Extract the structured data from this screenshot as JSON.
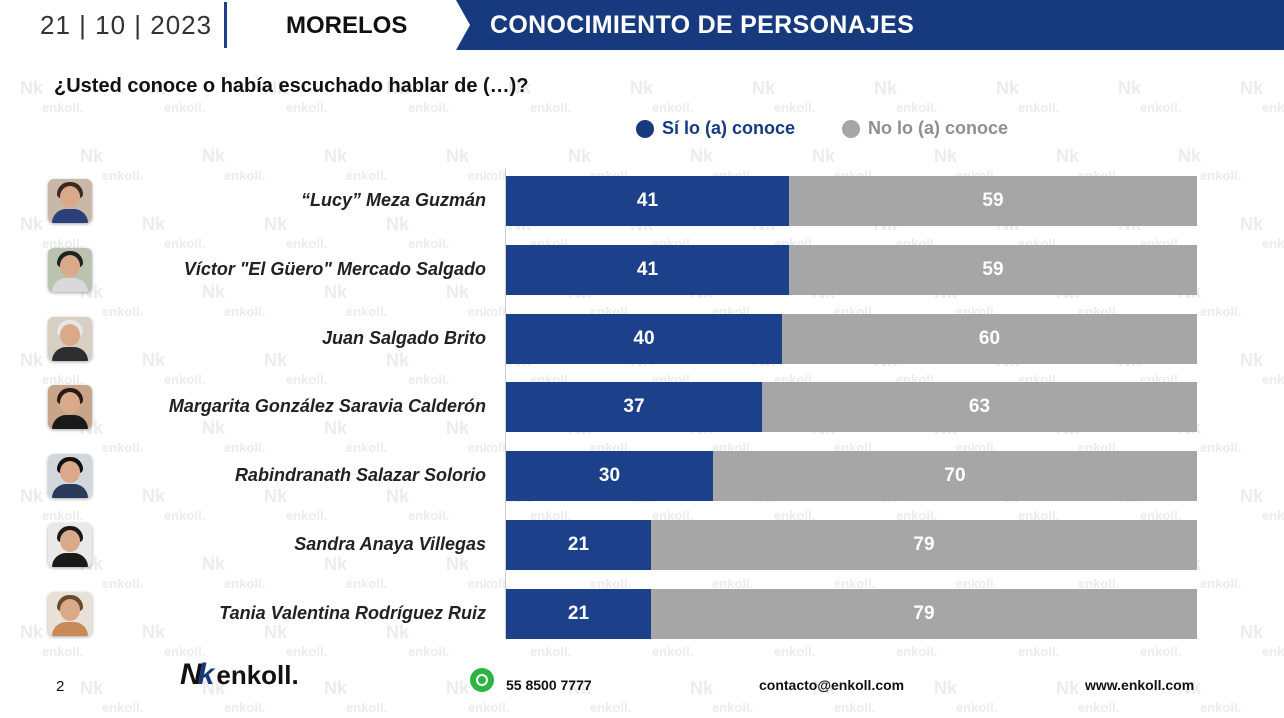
{
  "header": {
    "date": "21 | 10 | 2023",
    "state": "MORELOS",
    "banner": "CONOCIMIENTO DE PERSONAJES"
  },
  "question": "¿Usted conoce o había escuchado hablar de (…)?",
  "watermark_text": "enkoll.",
  "colors": {
    "yes": "#1c4089",
    "no": "#a6a6a6",
    "banner": "#17397d"
  },
  "chart_data": {
    "type": "bar",
    "orientation": "horizontal",
    "stacked": true,
    "normalized": true,
    "categories": [
      "“Lucy” Meza Guzmán",
      "Víctor \"El Güero\" Mercado Salgado",
      "Juan Salgado Brito",
      "Margarita González Saravia Calderón",
      "Rabindranath Salazar Solorio",
      "Sandra Anaya Villegas",
      "Tania Valentina Rodríguez Ruiz"
    ],
    "series": [
      {
        "name": "Sí lo (a) conoce",
        "values": [
          41,
          41,
          40,
          37,
          30,
          21,
          21
        ],
        "color": "#1c4089"
      },
      {
        "name": "No lo (a) conoce",
        "values": [
          59,
          59,
          60,
          63,
          70,
          79,
          79
        ],
        "color": "#a6a6a6"
      }
    ],
    "title": "",
    "xlabel": "",
    "ylabel": "",
    "legend": "top-right",
    "grid": false,
    "xlim": [
      0,
      100
    ]
  },
  "footer": {
    "page": "2",
    "logo_text": "enkoll.",
    "phone": "55 8500 7777",
    "email": "contacto@enkoll.com",
    "web": "www.enkoll.com"
  }
}
